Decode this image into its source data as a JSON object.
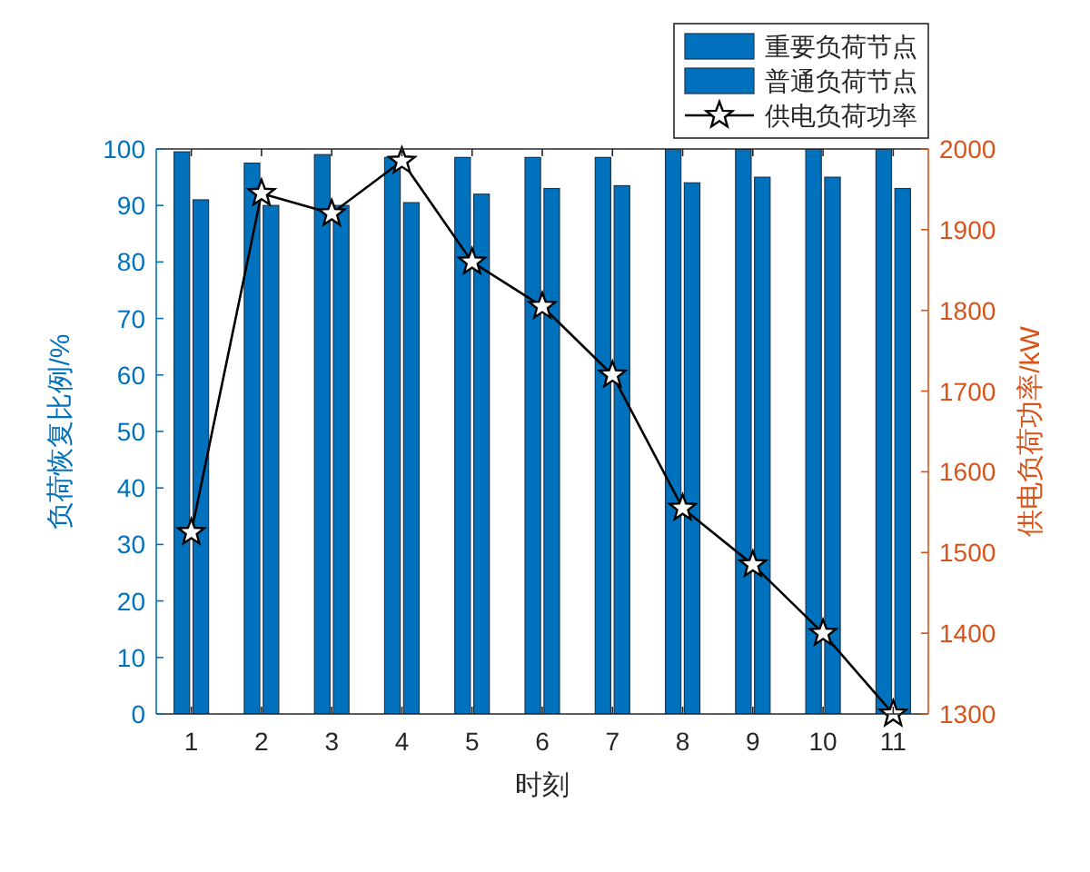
{
  "chart_data": {
    "type": "bar",
    "categories": [
      "1",
      "2",
      "3",
      "4",
      "5",
      "6",
      "7",
      "8",
      "9",
      "10",
      "11"
    ],
    "xlabel": "时刻",
    "ylabel": "负荷恢复比例/%",
    "y2label": "供电负荷功率/kW",
    "ylim": [
      0,
      100
    ],
    "yticks": [
      0,
      10,
      20,
      30,
      40,
      50,
      60,
      70,
      80,
      90,
      100
    ],
    "y2lim": [
      1300,
      2000
    ],
    "y2ticks": [
      1300,
      1400,
      1500,
      1600,
      1700,
      1800,
      1900,
      2000
    ],
    "series": [
      {
        "name": "重要负荷节点",
        "color": "#0072bd",
        "values": [
          99.5,
          97.5,
          99,
          98.5,
          98.5,
          98.5,
          98.5,
          100,
          100,
          100,
          100
        ]
      },
      {
        "name": "普通负荷节点",
        "color": "#0072bd",
        "values": [
          91,
          90,
          90,
          90.5,
          92,
          93,
          93.5,
          94,
          95,
          95,
          93
        ]
      },
      {
        "name": "供电负荷功率",
        "type": "line",
        "axis": "y2",
        "color": "#000000",
        "marker": "star",
        "values": [
          1525,
          1945,
          1920,
          1985,
          1860,
          1805,
          1720,
          1555,
          1485,
          1400,
          1300
        ]
      }
    ],
    "legend": "top right"
  }
}
